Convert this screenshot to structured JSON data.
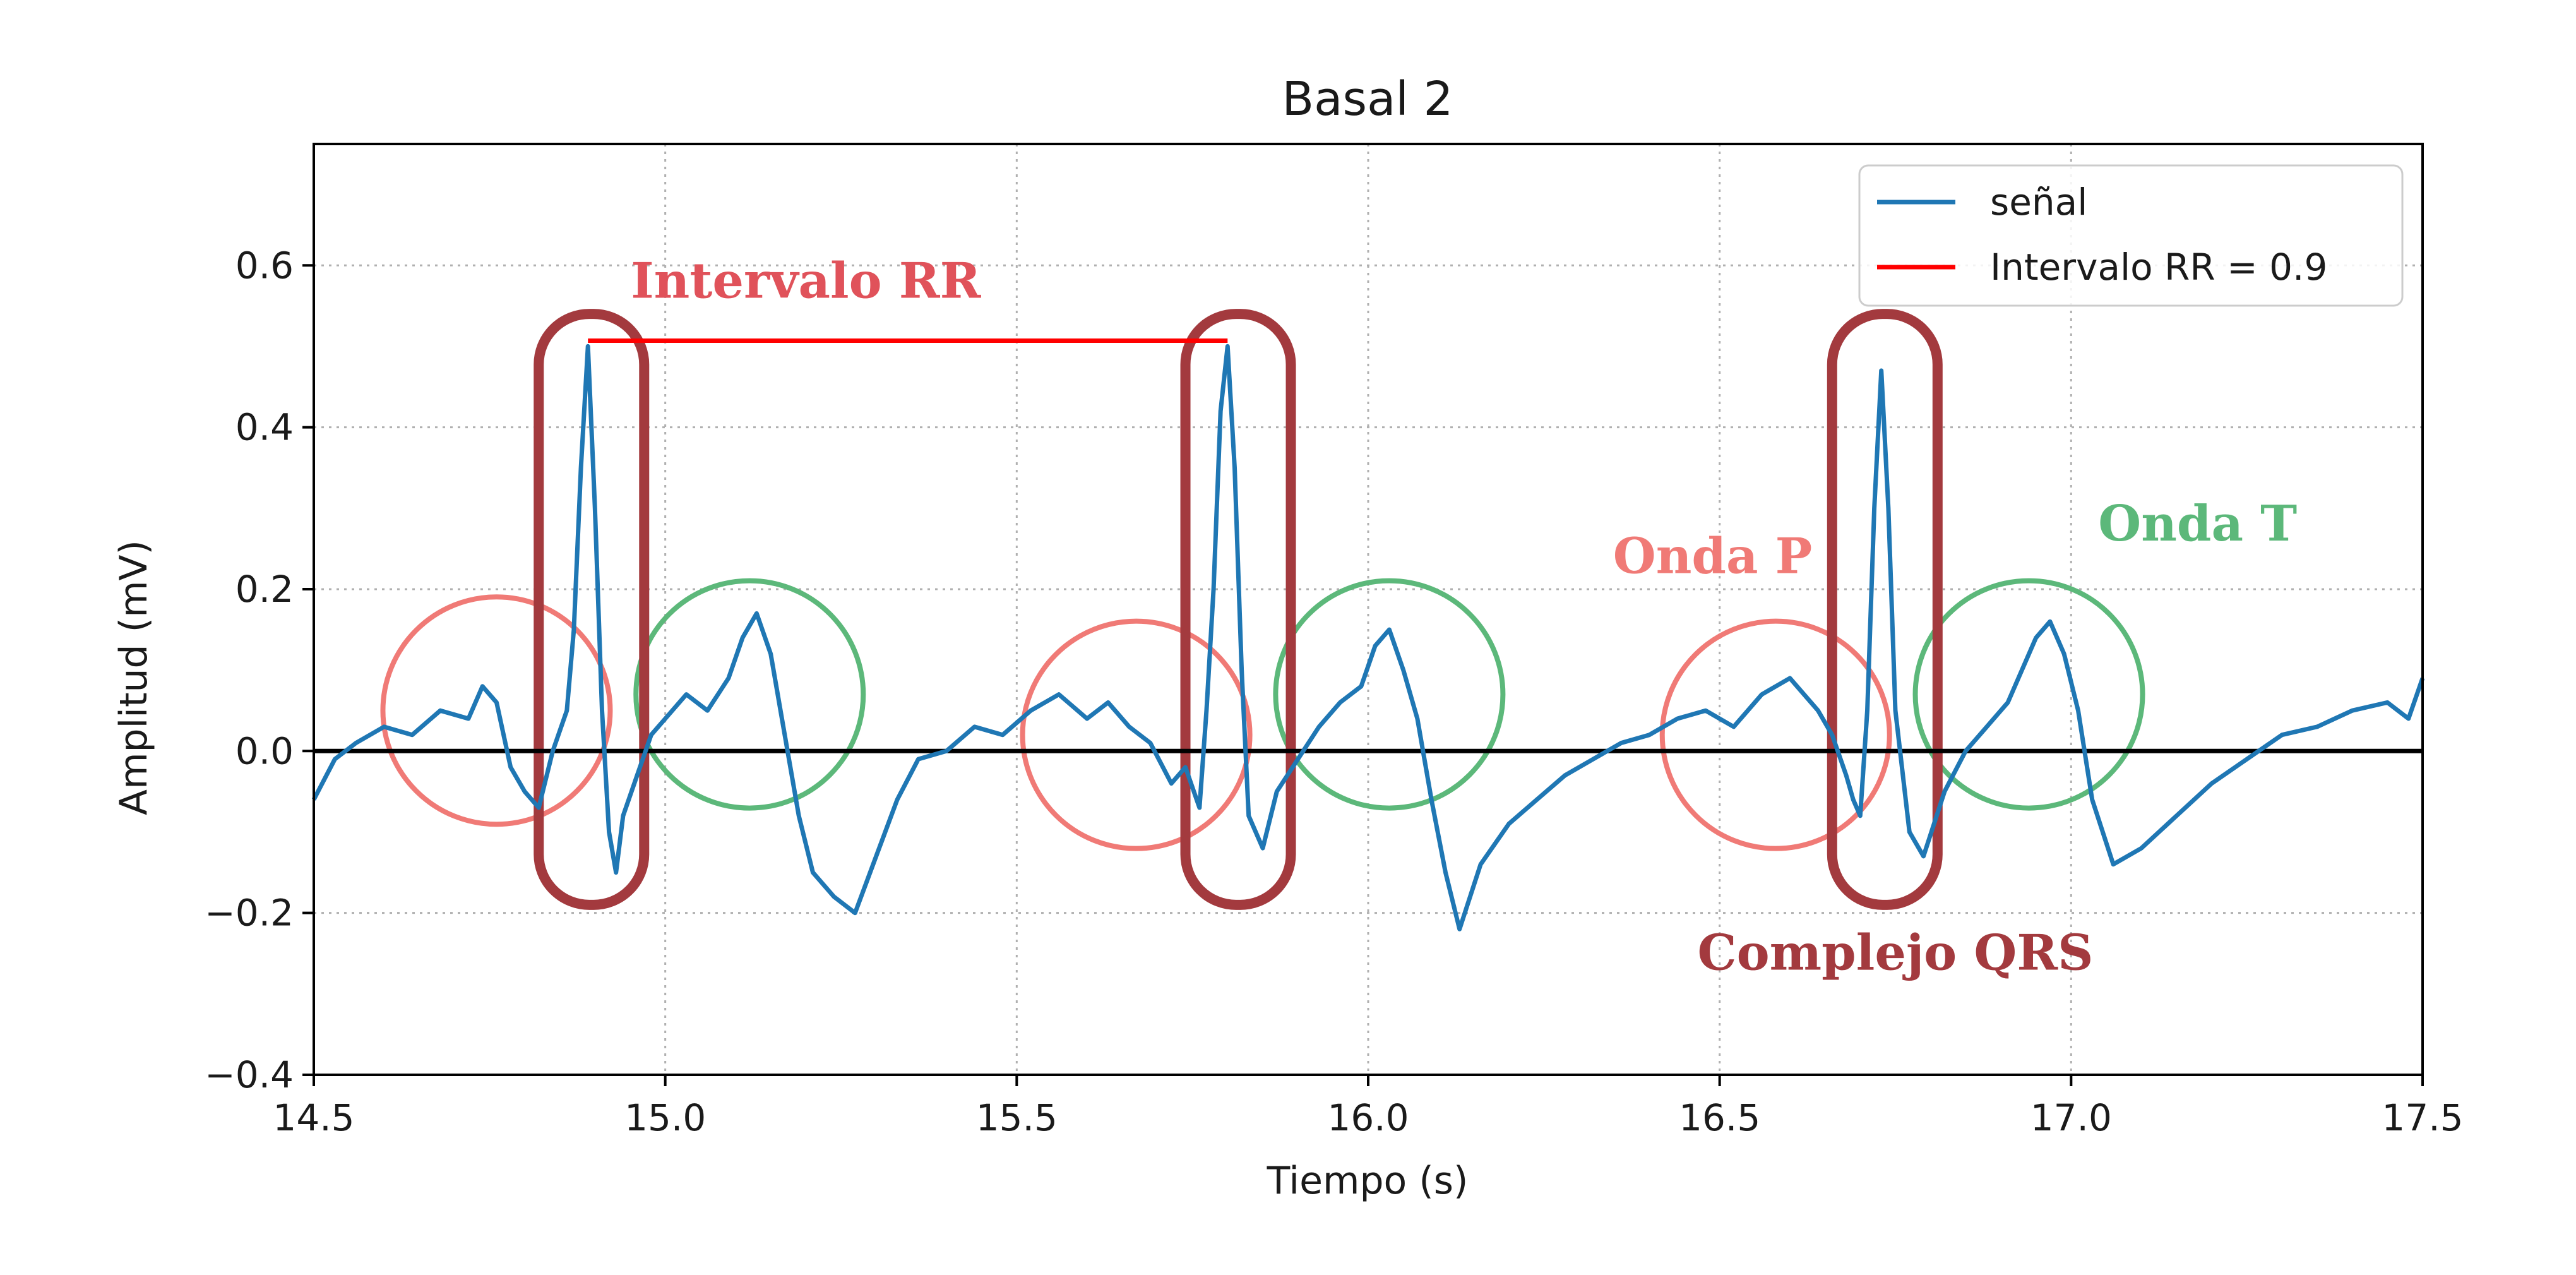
{
  "chart_data": {
    "type": "line",
    "title": "Basal 2",
    "xlabel": "Tiempo (s)",
    "ylabel": "Amplitud (mV)",
    "xlim": [
      14.5,
      17.5
    ],
    "ylim": [
      -0.4,
      0.75
    ],
    "xticks": [
      14.5,
      15.0,
      15.5,
      16.0,
      16.5,
      17.0,
      17.5
    ],
    "xtick_labels": [
      "14.5",
      "15.0",
      "15.5",
      "16.0",
      "16.5",
      "17.0",
      "17.5"
    ],
    "yticks": [
      -0.4,
      -0.2,
      0.0,
      0.2,
      0.4,
      0.6
    ],
    "ytick_labels": [
      "−0.4",
      "−0.2",
      "0.0",
      "0.2",
      "0.4",
      "0.6"
    ],
    "grid": true,
    "legend_position": "top-right",
    "series": [
      {
        "name": "señal",
        "color": "#1f77b4",
        "x": [
          14.5,
          14.53,
          14.56,
          14.6,
          14.64,
          14.68,
          14.72,
          14.74,
          14.76,
          14.78,
          14.8,
          14.82,
          14.84,
          14.86,
          14.87,
          14.88,
          14.89,
          14.9,
          14.91,
          14.92,
          14.93,
          14.94,
          14.96,
          14.98,
          15.0,
          15.03,
          15.06,
          15.09,
          15.11,
          15.13,
          15.15,
          15.17,
          15.19,
          15.21,
          15.24,
          15.27,
          15.3,
          15.33,
          15.36,
          15.4,
          15.44,
          15.48,
          15.52,
          15.56,
          15.6,
          15.63,
          15.66,
          15.69,
          15.72,
          15.74,
          15.76,
          15.77,
          15.78,
          15.79,
          15.8,
          15.81,
          15.82,
          15.83,
          15.85,
          15.87,
          15.9,
          15.93,
          15.96,
          15.99,
          16.01,
          16.03,
          16.05,
          16.07,
          16.09,
          16.11,
          16.13,
          16.16,
          16.2,
          16.24,
          16.28,
          16.32,
          16.36,
          16.4,
          16.44,
          16.48,
          16.52,
          16.56,
          16.6,
          16.64,
          16.66,
          16.68,
          16.69,
          16.7,
          16.71,
          16.72,
          16.73,
          16.74,
          16.75,
          16.77,
          16.79,
          16.82,
          16.85,
          16.88,
          16.91,
          16.93,
          16.95,
          16.97,
          16.99,
          17.01,
          17.03,
          17.06,
          17.1,
          17.15,
          17.2,
          17.25,
          17.3,
          17.35,
          17.4,
          17.45,
          17.48,
          17.5
        ],
        "y": [
          -0.06,
          -0.01,
          0.01,
          0.03,
          0.02,
          0.05,
          0.04,
          0.08,
          0.06,
          -0.02,
          -0.05,
          -0.07,
          0.0,
          0.05,
          0.15,
          0.35,
          0.5,
          0.3,
          0.05,
          -0.1,
          -0.15,
          -0.08,
          -0.03,
          0.02,
          0.04,
          0.07,
          0.05,
          0.09,
          0.14,
          0.17,
          0.12,
          0.02,
          -0.08,
          -0.15,
          -0.18,
          -0.2,
          -0.13,
          -0.06,
          -0.01,
          0.0,
          0.03,
          0.02,
          0.05,
          0.07,
          0.04,
          0.06,
          0.03,
          0.01,
          -0.04,
          -0.02,
          -0.07,
          0.05,
          0.2,
          0.42,
          0.5,
          0.35,
          0.1,
          -0.08,
          -0.12,
          -0.05,
          -0.01,
          0.03,
          0.06,
          0.08,
          0.13,
          0.15,
          0.1,
          0.04,
          -0.06,
          -0.15,
          -0.22,
          -0.14,
          -0.09,
          -0.06,
          -0.03,
          -0.01,
          0.01,
          0.02,
          0.04,
          0.05,
          0.03,
          0.07,
          0.09,
          0.05,
          0.02,
          -0.03,
          -0.06,
          -0.08,
          0.05,
          0.3,
          0.47,
          0.3,
          0.05,
          -0.1,
          -0.13,
          -0.05,
          0.0,
          0.03,
          0.06,
          0.1,
          0.14,
          0.16,
          0.12,
          0.05,
          -0.06,
          -0.14,
          -0.12,
          -0.08,
          -0.04,
          -0.01,
          0.02,
          0.03,
          0.05,
          0.06,
          0.04,
          0.09
        ]
      },
      {
        "name": "Intervalo RR = 0.9",
        "color": "#ff0000",
        "x": [
          14.89,
          15.8
        ],
        "y": [
          0.507,
          0.507
        ]
      }
    ],
    "baseline": {
      "y": 0.0,
      "color": "#000000"
    },
    "annotations": [
      {
        "text": "Intervalo RR",
        "color": "#e0525a",
        "at_x": 15.2,
        "at_y": 0.56
      },
      {
        "text": "Onda P",
        "color": "#f07a76",
        "at_x": 16.49,
        "at_y": 0.22
      },
      {
        "text": "Onda T",
        "color": "#5cb87a",
        "at_x": 17.18,
        "at_y": 0.26
      },
      {
        "text": "Complejo QRS",
        "color": "#a33a3e",
        "at_x": 16.75,
        "at_y": -0.27
      }
    ],
    "regions": [
      {
        "kind": "p-wave",
        "shape": "circle",
        "color": "#f07a76",
        "center_x": 14.76,
        "center_y": 0.05
      },
      {
        "kind": "p-wave",
        "shape": "circle",
        "color": "#f07a76",
        "center_x": 15.67,
        "center_y": 0.02
      },
      {
        "kind": "p-wave",
        "shape": "circle",
        "color": "#f07a76",
        "center_x": 16.58,
        "center_y": 0.02
      },
      {
        "kind": "t-wave",
        "shape": "circle",
        "color": "#5cb87a",
        "center_x": 15.12,
        "center_y": 0.07
      },
      {
        "kind": "t-wave",
        "shape": "circle",
        "color": "#5cb87a",
        "center_x": 16.03,
        "center_y": 0.07
      },
      {
        "kind": "t-wave",
        "shape": "circle",
        "color": "#5cb87a",
        "center_x": 16.94,
        "center_y": 0.07
      },
      {
        "kind": "qrs",
        "shape": "rounded-rect",
        "color": "#a33a3e",
        "x_from": 14.82,
        "x_to": 14.97,
        "y_from": -0.19,
        "y_to": 0.54
      },
      {
        "kind": "qrs",
        "shape": "rounded-rect",
        "color": "#a33a3e",
        "x_from": 15.74,
        "x_to": 15.89,
        "y_from": -0.19,
        "y_to": 0.54
      },
      {
        "kind": "qrs",
        "shape": "rounded-rect",
        "color": "#a33a3e",
        "x_from": 16.66,
        "x_to": 16.81,
        "y_from": -0.19,
        "y_to": 0.54
      }
    ]
  }
}
